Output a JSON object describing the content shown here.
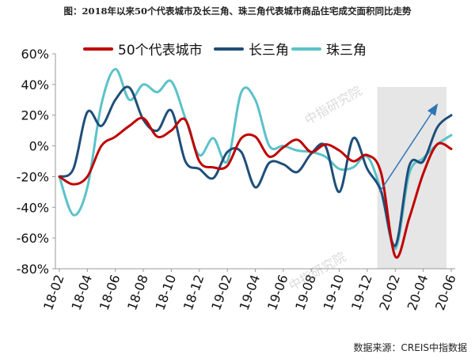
{
  "chart_data": {
    "type": "line",
    "title": "图：2018年以来50个代表城市及长三角、珠三角代表城市商品住宅成交面积同比走势",
    "xlabel": "",
    "ylabel": "",
    "ylim": [
      -80,
      60
    ],
    "yticks": [
      "60%",
      "40%",
      "20%",
      "0%",
      "-20%",
      "-40%",
      "-60%",
      "-80%"
    ],
    "ytick_values": [
      60,
      40,
      20,
      0,
      -20,
      -40,
      -60,
      -80
    ],
    "categories": [
      "18-02",
      "18-03",
      "18-04",
      "18-05",
      "18-06",
      "18-07",
      "18-08",
      "18-09",
      "18-10",
      "18-11",
      "18-12",
      "19-01",
      "19-02",
      "19-03",
      "19-04",
      "19-05",
      "19-06",
      "19-07",
      "19-08",
      "19-09",
      "19-10",
      "19-11",
      "19-12",
      "20-01",
      "20-02",
      "20-03",
      "20-04",
      "20-05",
      "20-06"
    ],
    "xticks": [
      "18-02",
      "18-04",
      "18-06",
      "18-08",
      "18-10",
      "18-12",
      "19-02",
      "19-04",
      "19-06",
      "19-08",
      "19-10",
      "19-12",
      "20-02",
      "20-04",
      "20-06"
    ],
    "grid": false,
    "legend_position": "top",
    "shaded_region": {
      "from": "20-01",
      "to": "20-06",
      "color": "#e6e6e6"
    },
    "trend_arrow": {
      "from": [
        "20-01",
        -30
      ],
      "to": [
        "20-05",
        27
      ],
      "color": "#2e75b6"
    },
    "series": [
      {
        "name": "50个代表城市",
        "color": "#c00000",
        "values": [
          -20,
          -25,
          -20,
          0,
          6,
          13,
          18,
          6,
          10,
          17,
          -10,
          -14,
          -13,
          5,
          6,
          -7,
          -1,
          4,
          -4,
          1,
          -3,
          -10,
          -6,
          -18,
          -72,
          -47,
          -18,
          1,
          -2
        ]
      },
      {
        "name": "长三角",
        "color": "#1f4e79",
        "values": [
          -20,
          -15,
          22,
          13,
          30,
          38,
          17,
          10,
          23,
          -10,
          -15,
          -21,
          -4,
          -4,
          -27,
          -11,
          -12,
          -17,
          -5,
          0,
          -30,
          5,
          -15,
          -30,
          -65,
          -13,
          -10,
          12,
          20
        ]
      },
      {
        "name": "珠三角",
        "color": "#5bc2c9",
        "values": [
          -20,
          -45,
          -27,
          27,
          50,
          30,
          40,
          35,
          42,
          18,
          -6,
          5,
          -10,
          35,
          30,
          0,
          0,
          -3,
          -4,
          -7,
          -15,
          -14,
          -7,
          -30,
          -67,
          -18,
          -8,
          1,
          7
        ]
      }
    ]
  },
  "source": "数据来源：CREIS中指数据",
  "watermark": "中指研究院"
}
